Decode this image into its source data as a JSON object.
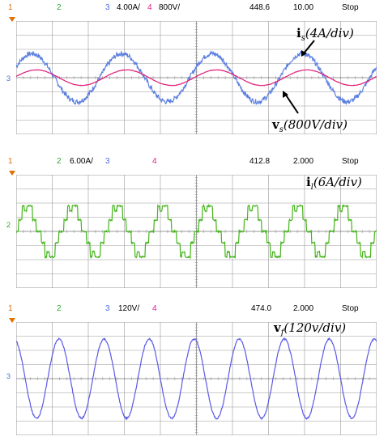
{
  "panels": [
    {
      "header": {
        "ch1": "1",
        "ch2": "2",
        "ch3": "3",
        "ch3_scale": "4.00A/",
        "ch4": "4",
        "ch4_scale": "800V/",
        "trigger_pos": "448.6",
        "timebase": "10.00",
        "status": "Stop"
      },
      "gnd_label": "3",
      "annotations": [
        {
          "var": "i",
          "sub": "s",
          "scale": "(4A/div)"
        },
        {
          "var": "v",
          "sub": "s",
          "scale": "(800V/div)"
        }
      ]
    },
    {
      "header": {
        "ch1": "1",
        "ch2": "2",
        "ch2_scale": "6.00A/",
        "ch3": "3",
        "ch4": "4",
        "trigger_pos": "412.8",
        "timebase": "2.000",
        "status": "Stop"
      },
      "gnd_label": "2",
      "annotations": [
        {
          "var": "i",
          "sub": "l",
          "scale": "(6A/div)"
        }
      ]
    },
    {
      "header": {
        "ch1": "1",
        "ch2": "2",
        "ch3": "3",
        "ch3_scale": "120V/",
        "ch4": "4",
        "trigger_pos": "474.0",
        "timebase": "2.000",
        "status": "Stop"
      },
      "gnd_label": "3",
      "annotations": [
        {
          "var": "v",
          "sub": "f",
          "scale": "(120v/div)"
        }
      ]
    }
  ],
  "colors": {
    "ch1": "#e07000",
    "ch2": "#2fa82f",
    "ch3": "#4a6fe0",
    "ch4": "#e0208a",
    "grid": "#9a9a9a",
    "trace_current": "#5b7fe0",
    "trace_voltage_s": "#e0207a",
    "trace_load": "#44b51a",
    "trace_vf": "#5a5ae6"
  },
  "chart_data": [
    {
      "type": "line",
      "grid": true,
      "divisions": {
        "x": 10,
        "y": 8
      },
      "series": [
        {
          "channel": "3",
          "cycles": 4,
          "amplitude_div": 1.7,
          "waveform": "sine-noisy"
        },
        {
          "channel": "4",
          "cycles": 4,
          "amplitude_div": 0.55,
          "waveform": "sine"
        }
      ]
    },
    {
      "type": "line",
      "grid": true,
      "divisions": {
        "x": 10,
        "y": 8
      },
      "series": [
        {
          "channel": "2",
          "cycles": 8,
          "amplitude_div": 1.8,
          "waveform": "rectified-step"
        }
      ]
    },
    {
      "type": "line",
      "grid": true,
      "divisions": {
        "x": 10,
        "y": 8
      },
      "series": [
        {
          "channel": "3",
          "cycles": 8,
          "amplitude_div": 2.8,
          "waveform": "sine-noisy"
        }
      ]
    }
  ]
}
